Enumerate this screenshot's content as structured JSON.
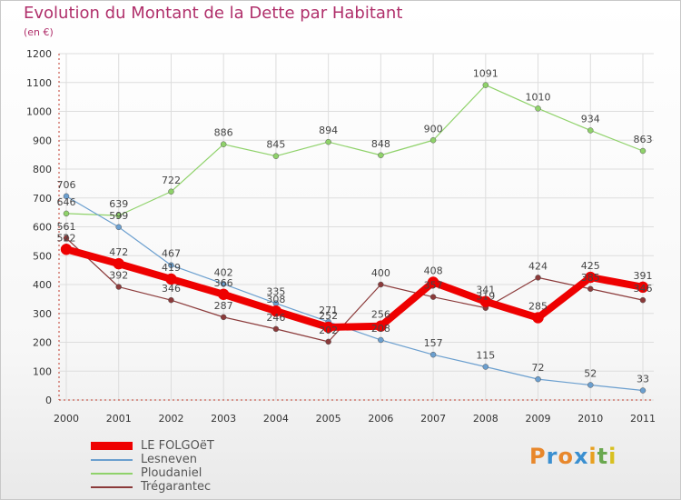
{
  "title": "Evolution du Montant de la Dette par Habitant",
  "subtitle": "(en €)",
  "brand": {
    "letters": [
      "P",
      "r",
      "o",
      "x",
      "i",
      "t",
      "i"
    ],
    "colors": [
      "#e8872b",
      "#3a8fd0",
      "#e8872b",
      "#3a8fd0",
      "#e8a020",
      "#6aa84f",
      "#d8c020"
    ]
  },
  "chart_data": {
    "type": "line",
    "categories": [
      "2000",
      "2001",
      "2002",
      "2003",
      "2004",
      "2005",
      "2006",
      "2007",
      "2008",
      "2009",
      "2010",
      "2011"
    ],
    "ylim": [
      0,
      1200
    ],
    "yticks": [
      "0",
      "100",
      "200",
      "300",
      "400",
      "500",
      "600",
      "700",
      "800",
      "900",
      "1000",
      "1100",
      "1200"
    ],
    "grid": true,
    "legend_position": "bottom-left",
    "series": [
      {
        "name": "LE FOLGOëT",
        "color": "#ee0000",
        "values": [
          522,
          472,
          419,
          366,
          308,
          252,
          256,
          408,
          341,
          285,
          425,
          391
        ],
        "labels": [
          "522",
          "472",
          "419",
          "366",
          "308",
          "252",
          "256",
          "408",
          "341",
          "285",
          "425",
          "391"
        ]
      },
      {
        "name": "Lesneven",
        "color": "#6b9fcf",
        "values": [
          706,
          599,
          467,
          402,
          335,
          271,
          208,
          157,
          115,
          72,
          52,
          33
        ],
        "labels": [
          "706",
          "599",
          "467",
          "402",
          "335",
          "271",
          "208",
          "157",
          "115",
          "72",
          "52",
          "33"
        ]
      },
      {
        "name": "Ploudaniel",
        "color": "#8fd26a",
        "values": [
          646,
          639,
          722,
          886,
          845,
          894,
          848,
          900,
          1091,
          1010,
          934,
          863
        ],
        "labels": [
          "646",
          "639",
          "722",
          "886",
          "845",
          "894",
          "848",
          "900",
          "1091",
          "1010",
          "934",
          "863"
        ]
      },
      {
        "name": "Trégarantec",
        "color": "#8b3a3a",
        "values": [
          561,
          392,
          346,
          287,
          246,
          202,
          400,
          357,
          319,
          424,
          385,
          346
        ],
        "labels": [
          "561",
          "392",
          "346",
          "287",
          "246",
          "202",
          "400",
          "357",
          "319",
          "424",
          "385",
          "346"
        ]
      }
    ]
  }
}
